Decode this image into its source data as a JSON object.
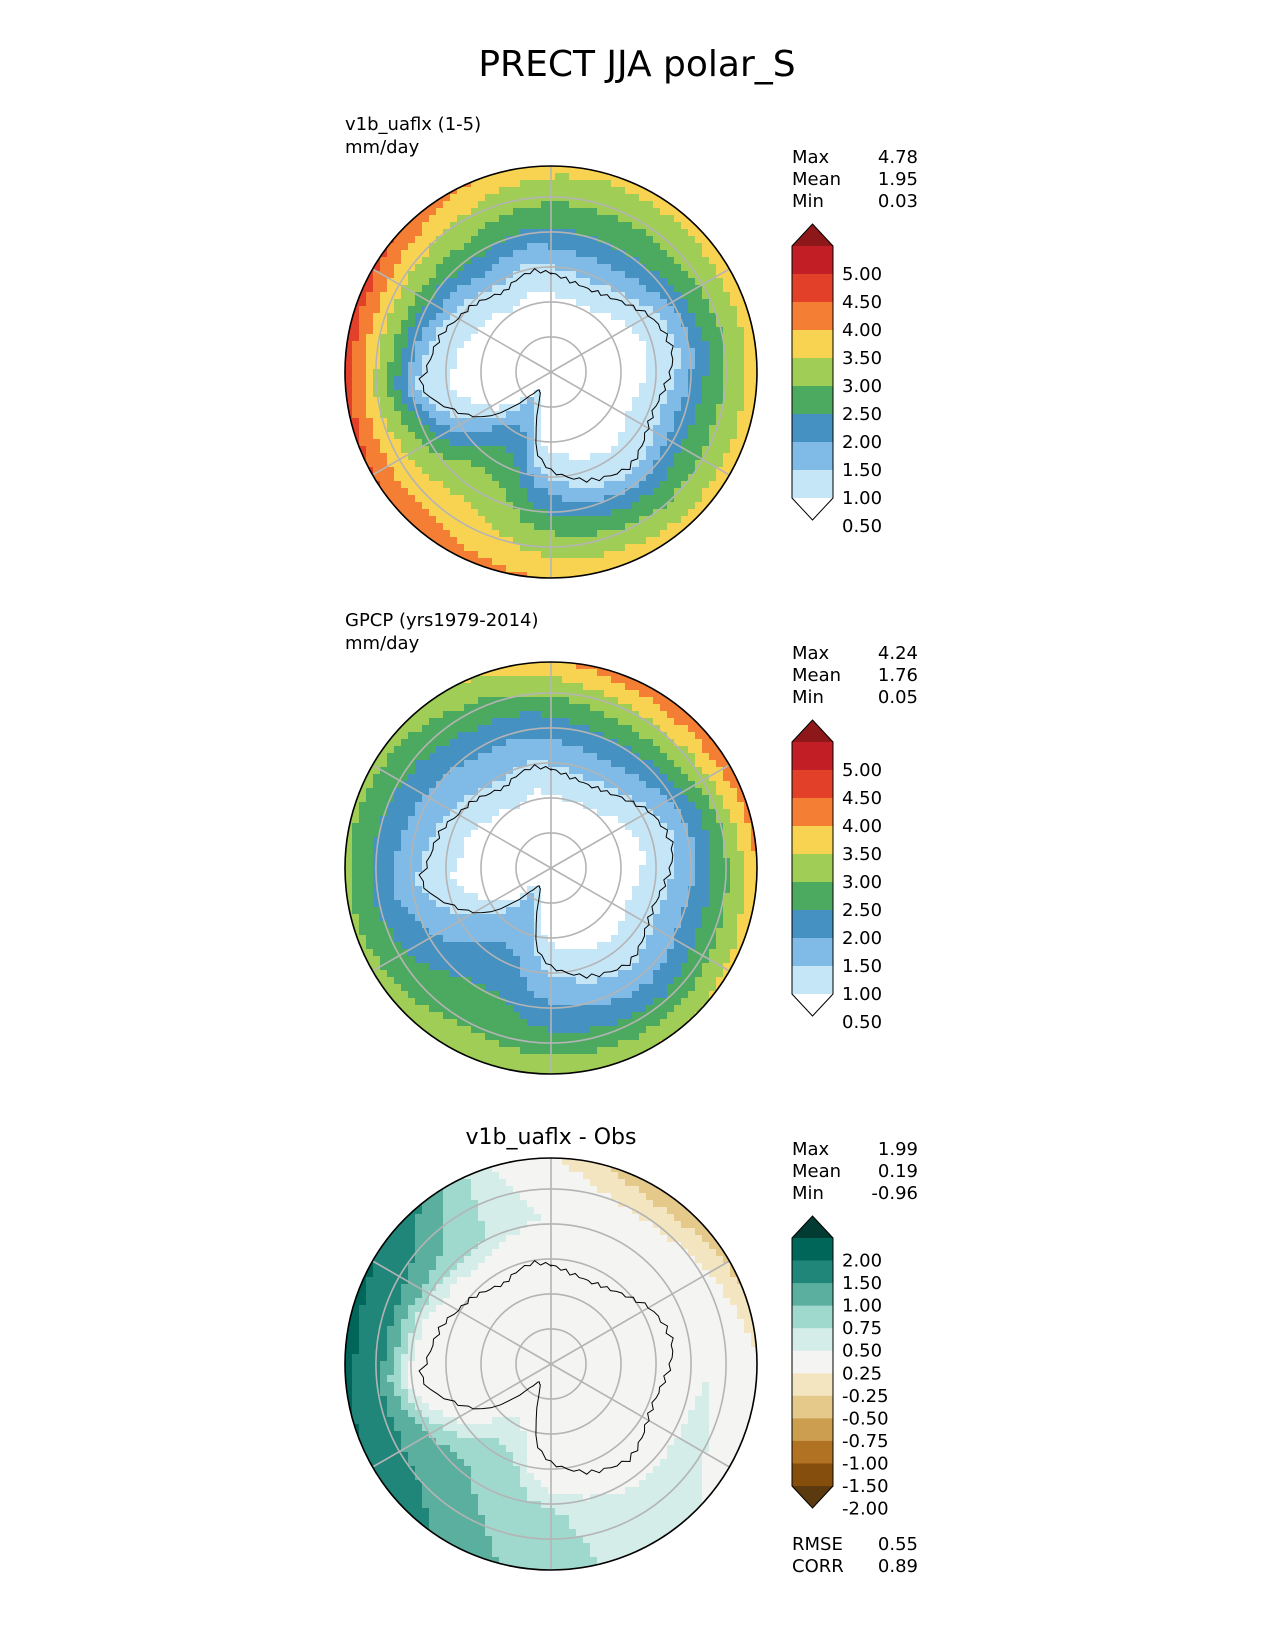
{
  "title": "PRECT JJA polar_S",
  "colors": {
    "abs_levels": [
      "#ffffff",
      "#c5e6f7",
      "#7fbbe6",
      "#4591c2",
      "#4caa60",
      "#9fcd55",
      "#f8d351",
      "#f47e33",
      "#e24029",
      "#c11f25",
      "#8e1719"
    ],
    "diff_levels": [
      "#5b3a0f",
      "#864e0c",
      "#b17323",
      "#cc9f50",
      "#e4c98b",
      "#f4e5c1",
      "#f4f4f2",
      "#d4ede8",
      "#9fd9cd",
      "#5aaf9e",
      "#21867a",
      "#01665a",
      "#023b31"
    ],
    "coast": "#000000",
    "grid": "#b4b4b4"
  },
  "chart_data": [
    {
      "type": "heatmap",
      "projection": "south-polar-stereographic",
      "title_line1": "v1b_uaflx (1-5)",
      "title_line2": "mm/day",
      "stats": [
        {
          "label": "Max",
          "value": "4.78"
        },
        {
          "label": "Mean",
          "value": "1.95"
        },
        {
          "label": "Min",
          "value": "0.03"
        }
      ],
      "colorbar": {
        "levels": [
          "5.00",
          "4.50",
          "4.00",
          "3.50",
          "3.00",
          "2.50",
          "2.00",
          "1.50",
          "1.00",
          "0.50"
        ],
        "extend": "both"
      },
      "field": {
        "polar_low": 0.3,
        "coast_low": 0.8,
        "ring_peak": 2.0,
        "outer": 2.9,
        "wave": [
          {
            "deg": 285,
            "amp": 1.3,
            "sharp": 4
          },
          {
            "deg": 200,
            "amp": 0.6,
            "sharp": 3
          },
          {
            "deg": 75,
            "amp": 0.4,
            "sharp": 3
          }
        ]
      }
    },
    {
      "type": "heatmap",
      "projection": "south-polar-stereographic",
      "title_line1": "GPCP (yrs1979-2014)",
      "title_line2": "mm/day",
      "stats": [
        {
          "label": "Max",
          "value": "4.24"
        },
        {
          "label": "Mean",
          "value": "1.76"
        },
        {
          "label": "Min",
          "value": "0.05"
        }
      ],
      "colorbar": {
        "levels": [
          "5.00",
          "4.50",
          "4.00",
          "3.50",
          "3.00",
          "2.50",
          "2.00",
          "1.50",
          "1.00",
          "0.50"
        ],
        "extend": "both"
      },
      "field": {
        "polar_low": 0.3,
        "coast_low": 0.9,
        "ring_peak": 1.6,
        "outer": 2.6,
        "wave": [
          {
            "deg": 45,
            "amp": 1.3,
            "sharp": 3
          },
          {
            "deg": 160,
            "amp": 0.3,
            "sharp": 3
          }
        ]
      }
    },
    {
      "type": "heatmap",
      "projection": "south-polar-stereographic",
      "title": "v1b_uaflx - Obs",
      "stats": [
        {
          "label": "Max",
          "value": "1.99"
        },
        {
          "label": "Mean",
          "value": "0.19"
        },
        {
          "label": "Min",
          "value": "-0.96"
        }
      ],
      "colorbar": {
        "levels": [
          "2.00",
          "1.50",
          "1.00",
          "0.75",
          "0.50",
          "0.25",
          "-0.25",
          "-0.50",
          "-0.75",
          "-1.00",
          "-1.50",
          "-2.00"
        ],
        "extend": "both"
      },
      "metrics": [
        {
          "label": "RMSE",
          "value": "0.55"
        },
        {
          "label": "CORR",
          "value": "0.89"
        }
      ]
    }
  ]
}
